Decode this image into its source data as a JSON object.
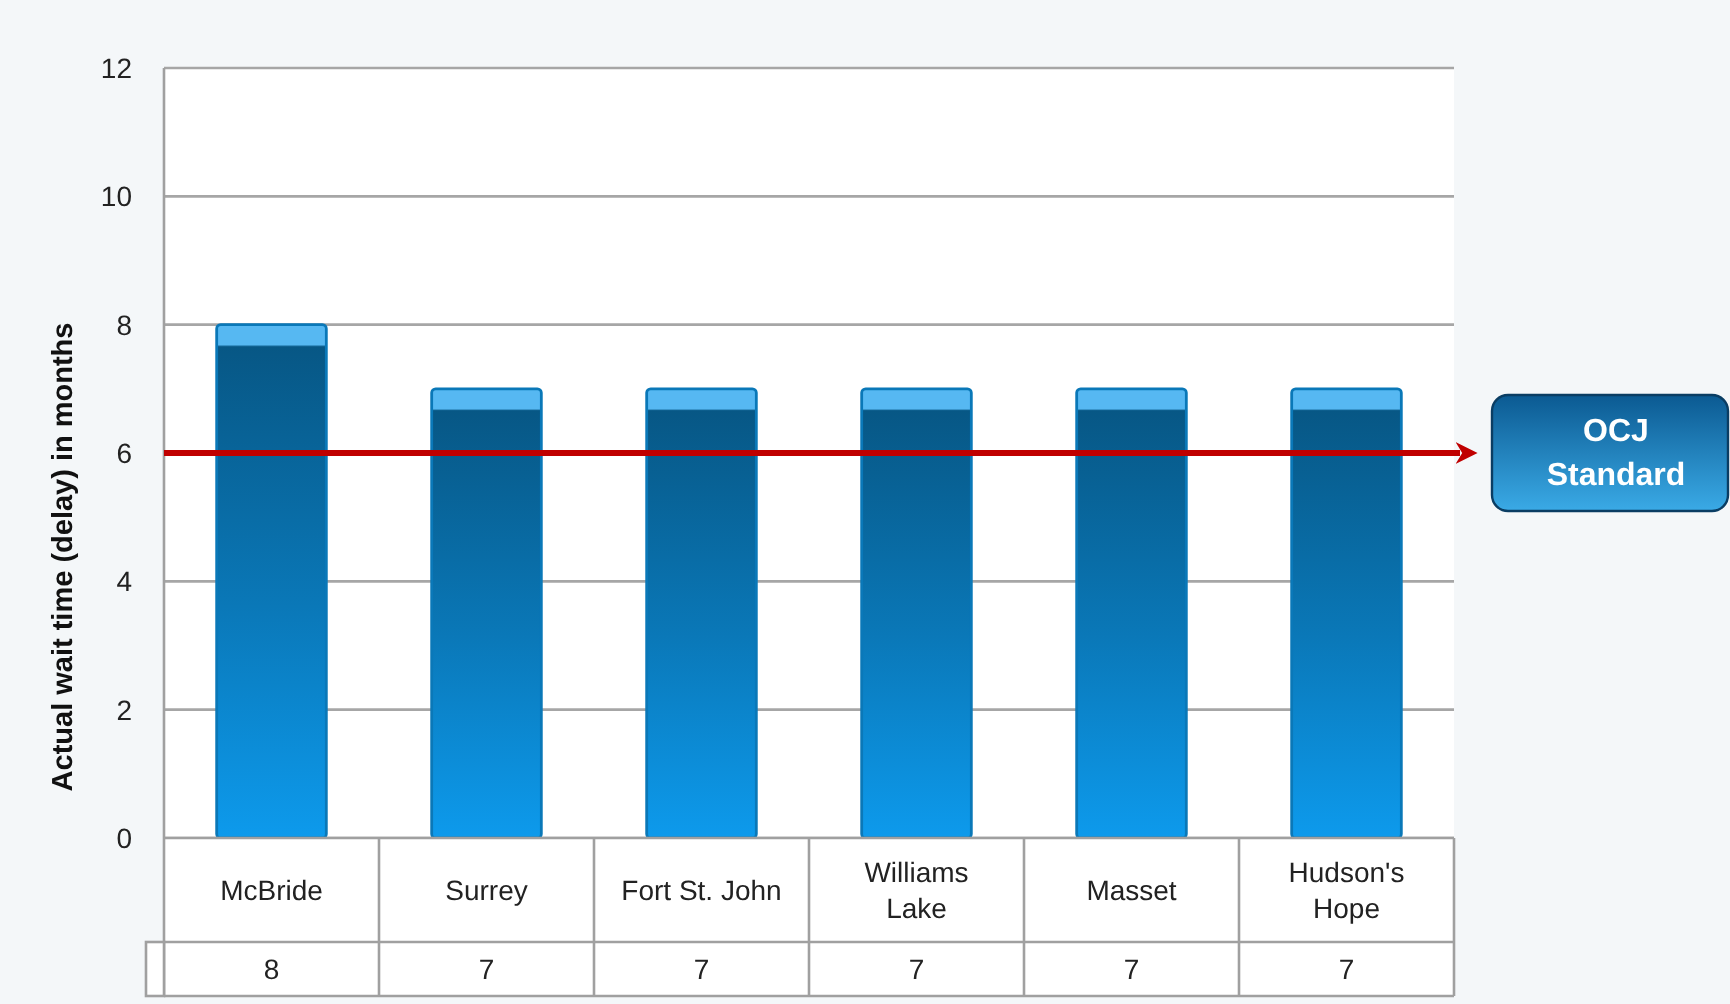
{
  "chart_data": {
    "type": "bar",
    "ylabel": "Actual wait time (delay) in months",
    "categories": [
      "McBride",
      "Surrey",
      "Fort St. John",
      "Williams Lake",
      "Masset",
      "Hudson's Hope"
    ],
    "values": [
      8,
      7,
      7,
      7,
      7,
      7
    ],
    "color": "#0a78b8",
    "ylim": [
      0,
      12
    ],
    "yticks": [
      0,
      2,
      4,
      6,
      8,
      10,
      12
    ],
    "grid": "y",
    "data_labels": true,
    "ref_lines": [
      {
        "axis": "y",
        "value": 6,
        "label": "OCJ Standard",
        "color": "#c00000"
      }
    ]
  }
}
